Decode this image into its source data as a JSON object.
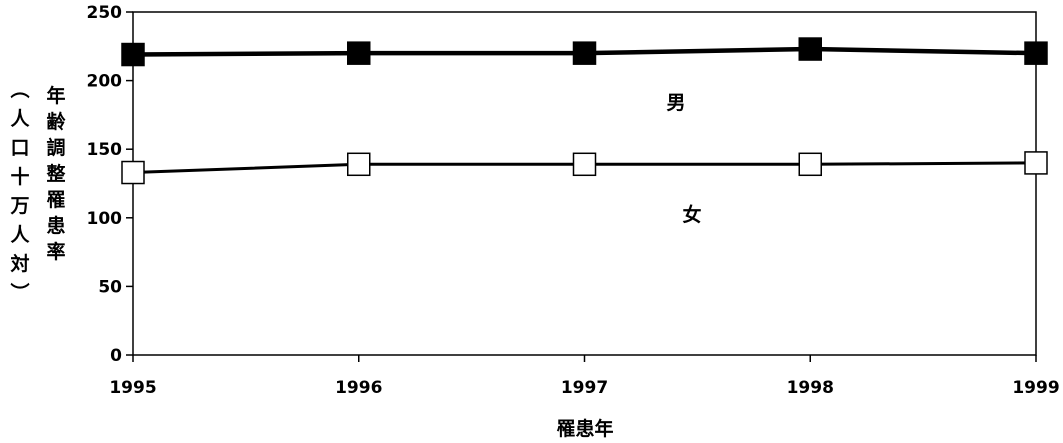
{
  "chart_data": {
    "type": "line",
    "title": "",
    "xlabel": "罹患年",
    "ylabel_main": "年齢調整罹患率",
    "ylabel_sub": "（人口十万人対）",
    "x": [
      "1995",
      "1996",
      "1997",
      "1998",
      "1999"
    ],
    "ylim": [
      0,
      250
    ],
    "yticks": [
      0,
      50,
      100,
      150,
      200,
      250
    ],
    "yticks_labels": [
      "0",
      "50",
      "100",
      "150",
      "200",
      "250"
    ],
    "grid": false,
    "legend": "inline labels",
    "series": [
      {
        "name": "男",
        "values": [
          219,
          220,
          220,
          223,
          220
        ],
        "marker": "filled-square",
        "color": "#000000"
      },
      {
        "name": "女",
        "values": [
          133,
          139,
          139,
          139,
          140
        ],
        "marker": "open-square",
        "color": "#000000"
      }
    ]
  }
}
